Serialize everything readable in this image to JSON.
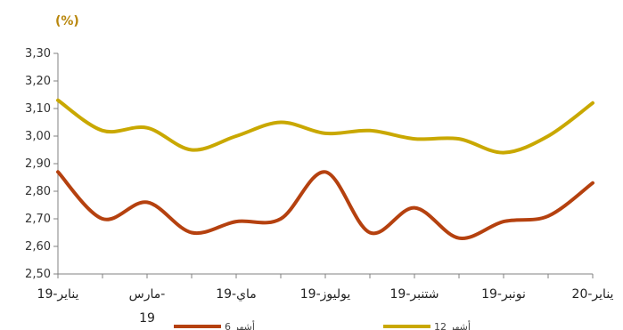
{
  "chart_data": {
    "type": "line",
    "unit_label": "(%)",
    "title": "",
    "xlabel": "",
    "ylabel": "",
    "ylim": [
      2.5,
      3.3
    ],
    "y_ticks": [
      "2,50",
      "2,60",
      "2,70",
      "2,80",
      "2,90",
      "3,00",
      "3,10",
      "3,20",
      "3,30"
    ],
    "y_tick_values": [
      2.5,
      2.6,
      2.7,
      2.8,
      2.9,
      3.0,
      3.1,
      3.2,
      3.3
    ],
    "x_tick_labels": [
      [
        "يناير-19"
      ],
      [
        "مارس-",
        "19"
      ],
      [
        "ماي-19"
      ],
      [
        "يوليوز-19"
      ],
      [
        "شتنبر-19"
      ],
      [
        "نونبر-19"
      ],
      [
        "يناير-20"
      ]
    ],
    "months": [
      "2019-01",
      "2019-02",
      "2019-03",
      "2019-04",
      "2019-05",
      "2019-06",
      "2019-07",
      "2019-08",
      "2019-09",
      "2019-10",
      "2019-11",
      "2019-12",
      "2020-01"
    ],
    "grid": false,
    "legend_position": "bottom",
    "series": [
      {
        "name": "12 أشهر",
        "color": "#c9a800",
        "values": [
          3.13,
          3.02,
          3.03,
          2.95,
          3.0,
          3.05,
          3.01,
          3.02,
          2.99,
          2.99,
          2.94,
          3.0,
          3.12
        ]
      },
      {
        "name": "6 أشهر",
        "color": "#b5410f",
        "values": [
          2.87,
          2.7,
          2.76,
          2.65,
          2.69,
          2.7,
          2.87,
          2.65,
          2.74,
          2.63,
          2.69,
          2.71,
          2.83
        ]
      }
    ]
  }
}
